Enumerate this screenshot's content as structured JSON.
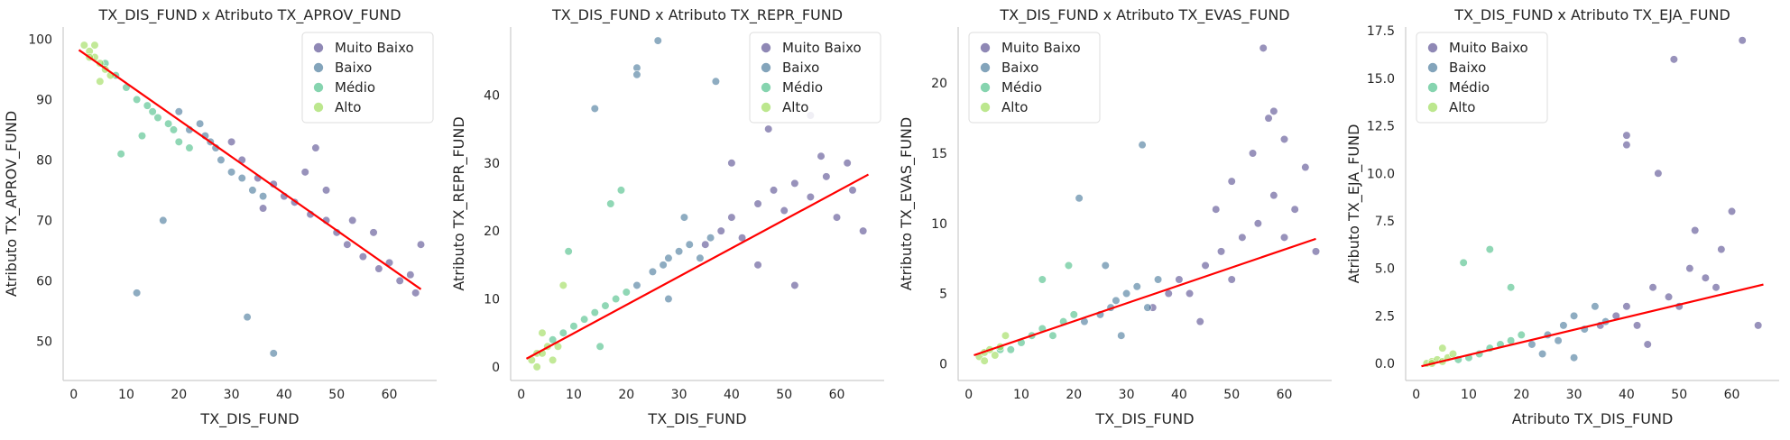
{
  "legend_categories": [
    {
      "name": "Muito Baixo",
      "color": "#443983"
    },
    {
      "name": "Baixo",
      "color": "#31688e"
    },
    {
      "name": "Médio",
      "color": "#35b779"
    },
    {
      "name": "Alto",
      "color": "#90d743"
    }
  ],
  "regression_color": "#ff0000",
  "chart_data": [
    {
      "type": "scatter",
      "title": "TX_DIS_FUND x Atributo TX_APROV_FUND",
      "xlabel": "TX_DIS_FUND",
      "ylabel": "Atributo TX_APROV_FUND",
      "xlim": [
        -2,
        69
      ],
      "ylim": [
        43.5,
        102
      ],
      "xticks": [
        0,
        10,
        20,
        30,
        40,
        50,
        60
      ],
      "yticks": [
        50,
        60,
        70,
        80,
        90,
        100
      ],
      "legend_position": "top-right",
      "series": [
        {
          "name": "Muito Baixo",
          "points": [
            [
              32,
              80
            ],
            [
              35,
              77
            ],
            [
              38,
              76
            ],
            [
              40,
              74
            ],
            [
              42,
              73
            ],
            [
              45,
              71
            ],
            [
              48,
              70
            ],
            [
              50,
              68
            ],
            [
              52,
              66
            ],
            [
              55,
              64
            ],
            [
              58,
              62
            ],
            [
              60,
              63
            ],
            [
              62,
              60
            ],
            [
              65,
              58
            ],
            [
              66,
              66
            ],
            [
              44,
              78
            ],
            [
              46,
              82
            ],
            [
              36,
              72
            ],
            [
              30,
              83
            ],
            [
              48,
              75
            ],
            [
              53,
              70
            ],
            [
              57,
              68
            ],
            [
              64,
              61
            ]
          ]
        },
        {
          "name": "Baixo",
          "points": [
            [
              20,
              88
            ],
            [
              22,
              85
            ],
            [
              25,
              84
            ],
            [
              27,
              82
            ],
            [
              28,
              80
            ],
            [
              30,
              78
            ],
            [
              32,
              77
            ],
            [
              34,
              75
            ],
            [
              36,
              74
            ],
            [
              24,
              86
            ],
            [
              26,
              83
            ],
            [
              12,
              58
            ],
            [
              38,
              48
            ],
            [
              33,
              54
            ],
            [
              17,
              70
            ]
          ]
        },
        {
          "name": "Médio",
          "points": [
            [
              8,
              94
            ],
            [
              10,
              92
            ],
            [
              12,
              90
            ],
            [
              14,
              89
            ],
            [
              15,
              88
            ],
            [
              16,
              87
            ],
            [
              18,
              86
            ],
            [
              19,
              85
            ],
            [
              20,
              83
            ],
            [
              22,
              82
            ],
            [
              9,
              81
            ],
            [
              13,
              84
            ],
            [
              6,
              96
            ]
          ]
        },
        {
          "name": "Alto",
          "points": [
            [
              2,
              99
            ],
            [
              3,
              98
            ],
            [
              4,
              97
            ],
            [
              5,
              96
            ],
            [
              6,
              95
            ],
            [
              7,
              94
            ],
            [
              4,
              99
            ],
            [
              3,
              97
            ],
            [
              5,
              93
            ]
          ]
        }
      ],
      "regression": {
        "x": [
          1,
          66
        ],
        "y": [
          98.2,
          58.6
        ]
      }
    },
    {
      "type": "scatter",
      "title": "TX_DIS_FUND x Atributo TX_REPR_FUND",
      "xlabel": "TX_DIS_FUND",
      "ylabel": "Atributo TX_REPR_FUND",
      "xlim": [
        -2,
        69
      ],
      "ylim": [
        -2,
        50
      ],
      "xticks": [
        0,
        10,
        20,
        30,
        40,
        50,
        60
      ],
      "yticks": [
        0,
        10,
        20,
        30,
        40
      ],
      "legend_position": "top-right",
      "series": [
        {
          "name": "Muito Baixo",
          "points": [
            [
              35,
              18
            ],
            [
              38,
              20
            ],
            [
              40,
              22
            ],
            [
              42,
              19
            ],
            [
              45,
              24
            ],
            [
              48,
              26
            ],
            [
              50,
              23
            ],
            [
              52,
              27
            ],
            [
              55,
              25
            ],
            [
              58,
              28
            ],
            [
              60,
              22
            ],
            [
              62,
              30
            ],
            [
              65,
              20
            ],
            [
              47,
              35
            ],
            [
              55,
              37
            ],
            [
              40,
              30
            ],
            [
              45,
              15
            ],
            [
              52,
              12
            ],
            [
              57,
              31
            ],
            [
              63,
              26
            ]
          ]
        },
        {
          "name": "Baixo",
          "points": [
            [
              22,
              12
            ],
            [
              25,
              14
            ],
            [
              27,
              15
            ],
            [
              28,
              16
            ],
            [
              30,
              17
            ],
            [
              32,
              18
            ],
            [
              34,
              16
            ],
            [
              36,
              19
            ],
            [
              26,
              48
            ],
            [
              22,
              44
            ],
            [
              22,
              43
            ],
            [
              37,
              42
            ],
            [
              14,
              38
            ],
            [
              28,
              10
            ],
            [
              31,
              22
            ]
          ]
        },
        {
          "name": "Médio",
          "points": [
            [
              10,
              6
            ],
            [
              12,
              7
            ],
            [
              14,
              8
            ],
            [
              16,
              9
            ],
            [
              18,
              10
            ],
            [
              20,
              11
            ],
            [
              8,
              5
            ],
            [
              6,
              4
            ],
            [
              9,
              17
            ],
            [
              17,
              24
            ],
            [
              15,
              3
            ],
            [
              19,
              26
            ]
          ]
        },
        {
          "name": "Alto",
          "points": [
            [
              2,
              1
            ],
            [
              3,
              2
            ],
            [
              4,
              2
            ],
            [
              5,
              3
            ],
            [
              6,
              1
            ],
            [
              7,
              3
            ],
            [
              3,
              0
            ],
            [
              4,
              5
            ],
            [
              8,
              12
            ]
          ]
        }
      ],
      "regression": {
        "x": [
          1,
          66
        ],
        "y": [
          1.2,
          28.3
        ]
      }
    },
    {
      "type": "scatter",
      "title": "TX_DIS_FUND x Atributo TX_EVAS_FUND",
      "xlabel": "TX_DIS_FUND",
      "ylabel": "Atributo TX_EVAS_FUND",
      "xlim": [
        -2,
        69
      ],
      "ylim": [
        -1.2,
        24
      ],
      "xticks": [
        0,
        10,
        20,
        30,
        40,
        50,
        60
      ],
      "yticks": [
        0,
        5,
        10,
        15,
        20
      ],
      "legend_position": "top-left",
      "series": [
        {
          "name": "Muito Baixo",
          "points": [
            [
              35,
              4
            ],
            [
              38,
              5
            ],
            [
              40,
              6
            ],
            [
              42,
              5
            ],
            [
              45,
              7
            ],
            [
              48,
              8
            ],
            [
              50,
              6
            ],
            [
              52,
              9
            ],
            [
              55,
              10
            ],
            [
              58,
              12
            ],
            [
              60,
              9
            ],
            [
              62,
              11
            ],
            [
              56,
              22.5
            ],
            [
              57,
              17.5
            ],
            [
              58,
              18
            ],
            [
              54,
              15
            ],
            [
              50,
              13
            ],
            [
              64,
              14
            ],
            [
              66,
              8
            ],
            [
              44,
              3
            ],
            [
              47,
              11
            ],
            [
              60,
              16
            ]
          ]
        },
        {
          "name": "Baixo",
          "points": [
            [
              22,
              3
            ],
            [
              25,
              3.5
            ],
            [
              27,
              4
            ],
            [
              28,
              4.5
            ],
            [
              30,
              5
            ],
            [
              32,
              5.5
            ],
            [
              34,
              4
            ],
            [
              33,
              15.6
            ],
            [
              21,
              11.8
            ],
            [
              36,
              6
            ],
            [
              26,
              7
            ],
            [
              29,
              2
            ]
          ]
        },
        {
          "name": "Médio",
          "points": [
            [
              10,
              1.5
            ],
            [
              12,
              2
            ],
            [
              14,
              2.5
            ],
            [
              16,
              2
            ],
            [
              18,
              3
            ],
            [
              20,
              3.5
            ],
            [
              8,
              1
            ],
            [
              6,
              1
            ],
            [
              14,
              6
            ],
            [
              19,
              7
            ]
          ]
        },
        {
          "name": "Alto",
          "points": [
            [
              2,
              0.5
            ],
            [
              3,
              0.8
            ],
            [
              4,
              1
            ],
            [
              5,
              0.6
            ],
            [
              6,
              1.2
            ],
            [
              3,
              0.2
            ],
            [
              7,
              2
            ]
          ]
        }
      ],
      "regression": {
        "x": [
          1,
          66
        ],
        "y": [
          0.6,
          8.9
        ]
      }
    },
    {
      "type": "scatter",
      "title": "TX_DIS_FUND x Atributo TX_EJA_FUND",
      "xlabel": "Atributo TX_DIS_FUND",
      "ylabel": "Atributo TX_EJA_FUND",
      "xlim": [
        -2,
        69
      ],
      "ylim": [
        -0.9,
        17.7
      ],
      "xticks": [
        0,
        10,
        20,
        30,
        40,
        50,
        60
      ],
      "yticks": [
        0.0,
        2.5,
        5.0,
        7.5,
        10.0,
        12.5,
        15.0,
        17.5
      ],
      "legend_position": "top-left",
      "series": [
        {
          "name": "Muito Baixo",
          "points": [
            [
              35,
              2
            ],
            [
              38,
              2.5
            ],
            [
              40,
              3
            ],
            [
              42,
              2
            ],
            [
              45,
              4
            ],
            [
              48,
              3.5
            ],
            [
              50,
              3
            ],
            [
              52,
              5
            ],
            [
              55,
              4.5
            ],
            [
              58,
              6
            ],
            [
              60,
              8
            ],
            [
              62,
              17
            ],
            [
              49,
              16
            ],
            [
              46,
              10
            ],
            [
              40,
              12
            ],
            [
              40,
              11.5
            ],
            [
              57,
              4
            ],
            [
              65,
              2
            ],
            [
              44,
              1
            ],
            [
              53,
              7
            ]
          ]
        },
        {
          "name": "Baixo",
          "points": [
            [
              22,
              1
            ],
            [
              25,
              1.5
            ],
            [
              27,
              1.2
            ],
            [
              28,
              2
            ],
            [
              30,
              2.5
            ],
            [
              32,
              1.8
            ],
            [
              34,
              3
            ],
            [
              36,
              2.2
            ],
            [
              24,
              0.5
            ],
            [
              30,
              0.3
            ]
          ]
        },
        {
          "name": "Médio",
          "points": [
            [
              10,
              0.3
            ],
            [
              12,
              0.5
            ],
            [
              14,
              0.8
            ],
            [
              16,
              1
            ],
            [
              18,
              1.2
            ],
            [
              20,
              1.5
            ],
            [
              9,
              5.3
            ],
            [
              14,
              6
            ],
            [
              8,
              0.2
            ],
            [
              18,
              4
            ]
          ]
        },
        {
          "name": "Alto",
          "points": [
            [
              2,
              0
            ],
            [
              3,
              0.1
            ],
            [
              4,
              0.2
            ],
            [
              5,
              0.1
            ],
            [
              6,
              0.3
            ],
            [
              3,
              0
            ],
            [
              7,
              0.5
            ],
            [
              5,
              0.8
            ]
          ]
        }
      ],
      "regression": {
        "x": [
          1,
          66
        ],
        "y": [
          -0.15,
          4.15
        ]
      }
    }
  ]
}
